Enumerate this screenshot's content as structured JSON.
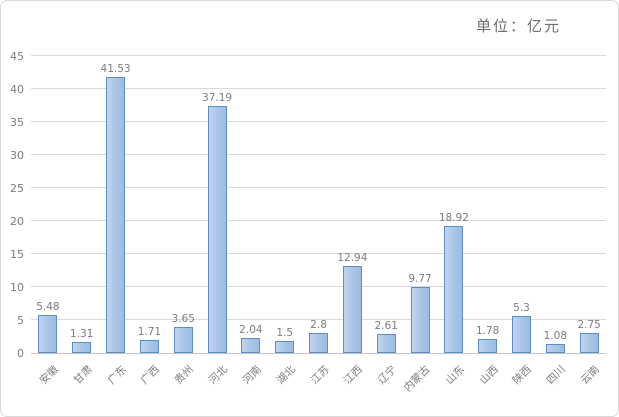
{
  "chart_data": {
    "type": "bar",
    "title": "单位：亿元",
    "categories": [
      "安徽",
      "甘肃",
      "广东",
      "广西",
      "贵州",
      "河北",
      "河南",
      "湖北",
      "江苏",
      "江西",
      "辽宁",
      "内蒙古",
      "山东",
      "山西",
      "陕西",
      "四川",
      "云南"
    ],
    "values": [
      5.48,
      1.31,
      41.53,
      1.71,
      3.65,
      37.19,
      2.04,
      1.5,
      2.8,
      12.94,
      2.61,
      9.77,
      18.92,
      1.78,
      5.3,
      1.08,
      2.75
    ],
    "value_labels": [
      "5.48",
      "1.31",
      "41.53",
      "1.71",
      "3.65",
      "37.19",
      "2.04",
      "1.5",
      "2.8",
      "12.94",
      "2.61",
      "9.77",
      "18.92",
      "1.78",
      "5.3",
      "1.08",
      "2.75"
    ],
    "xlabel": "",
    "ylabel": "",
    "ylim": [
      0,
      45
    ],
    "yticks": [
      0,
      5,
      10,
      15,
      20,
      25,
      30,
      35,
      40,
      45
    ],
    "grid": true,
    "legend": "none",
    "colors": {
      "bar_fill_light": "#c2d5ef",
      "bar_fill": "#aac7e8",
      "bar_fill_dark": "#9cbce2",
      "bar_border": "#5e8cc4",
      "gridline": "#d9d9d9",
      "axis_line": "#c3c3c3",
      "tick_text": "#7d7d7d",
      "title_text": "#6e6e6e",
      "chart_border": "#d9d9d9",
      "background": "#ffffff"
    }
  }
}
